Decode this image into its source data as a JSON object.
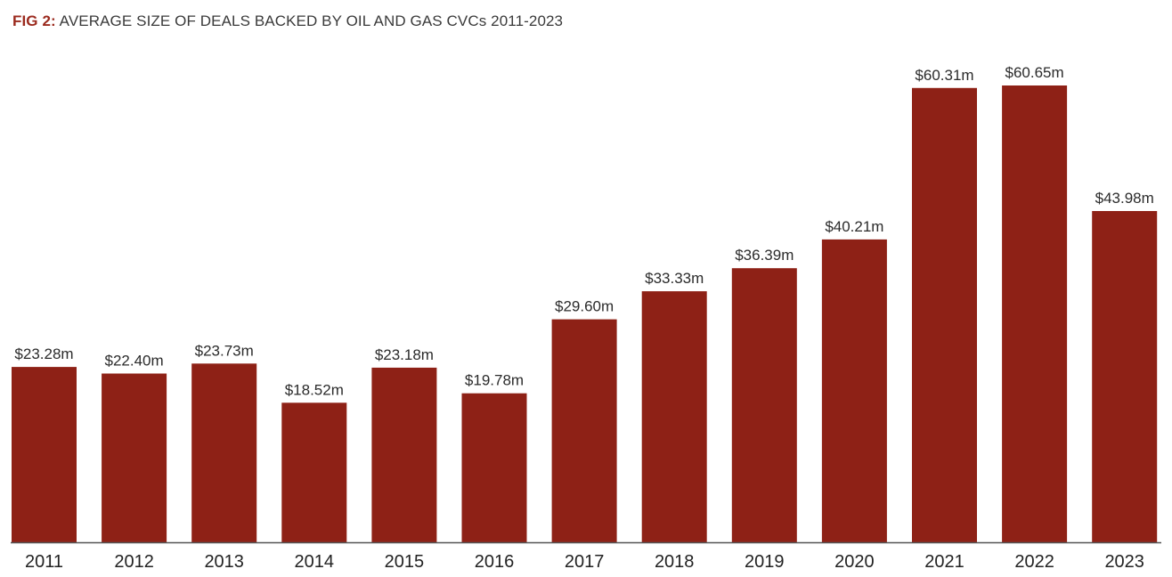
{
  "title": {
    "prefix": "FIG 2:",
    "text": "AVERAGE SIZE OF DEALS BACKED BY OIL AND GAS CVCs 2011-2023"
  },
  "colors": {
    "bar": "#8e2116",
    "title_prefix": "#9b2a1e",
    "axis": "#555555"
  },
  "chart_data": {
    "type": "bar",
    "title": "AVERAGE SIZE OF DEALS BACKED BY OIL AND GAS CVCs 2011-2023",
    "categories": [
      "2011",
      "2012",
      "2013",
      "2014",
      "2015",
      "2016",
      "2017",
      "2018",
      "2019",
      "2020",
      "2021",
      "2022",
      "2023"
    ],
    "values": [
      23.28,
      22.4,
      23.73,
      18.52,
      23.18,
      19.78,
      29.6,
      33.33,
      36.39,
      40.21,
      60.31,
      60.65,
      43.98
    ],
    "data_labels": [
      "$23.28m",
      "$22.40m",
      "$23.73m",
      "$18.52m",
      "$23.18m",
      "$19.78m",
      "$29.60m",
      "$33.33m",
      "$36.39m",
      "$40.21m",
      "$60.31m",
      "$60.65m",
      "$43.98m"
    ],
    "xlabel": "",
    "ylabel": "",
    "ylim": [
      0,
      61
    ],
    "grid": false,
    "legend": "none"
  }
}
